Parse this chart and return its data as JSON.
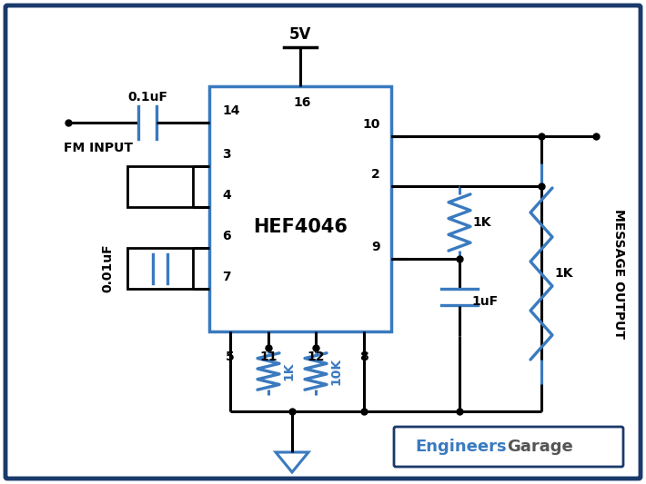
{
  "bg_color": "#ffffff",
  "border_color": "#1a3a6b",
  "ic_color": "#3a7abf",
  "wire_color": "#000000",
  "comp_color": "#3a7abf",
  "gnd_color": "#3a7abf",
  "label_color": "#000000",
  "ic_label": "HEF4046",
  "watermark_engineers": "Engineers",
  "watermark_garage": "Garage",
  "figw": 7.1,
  "figh": 5.33,
  "dpi": 100
}
